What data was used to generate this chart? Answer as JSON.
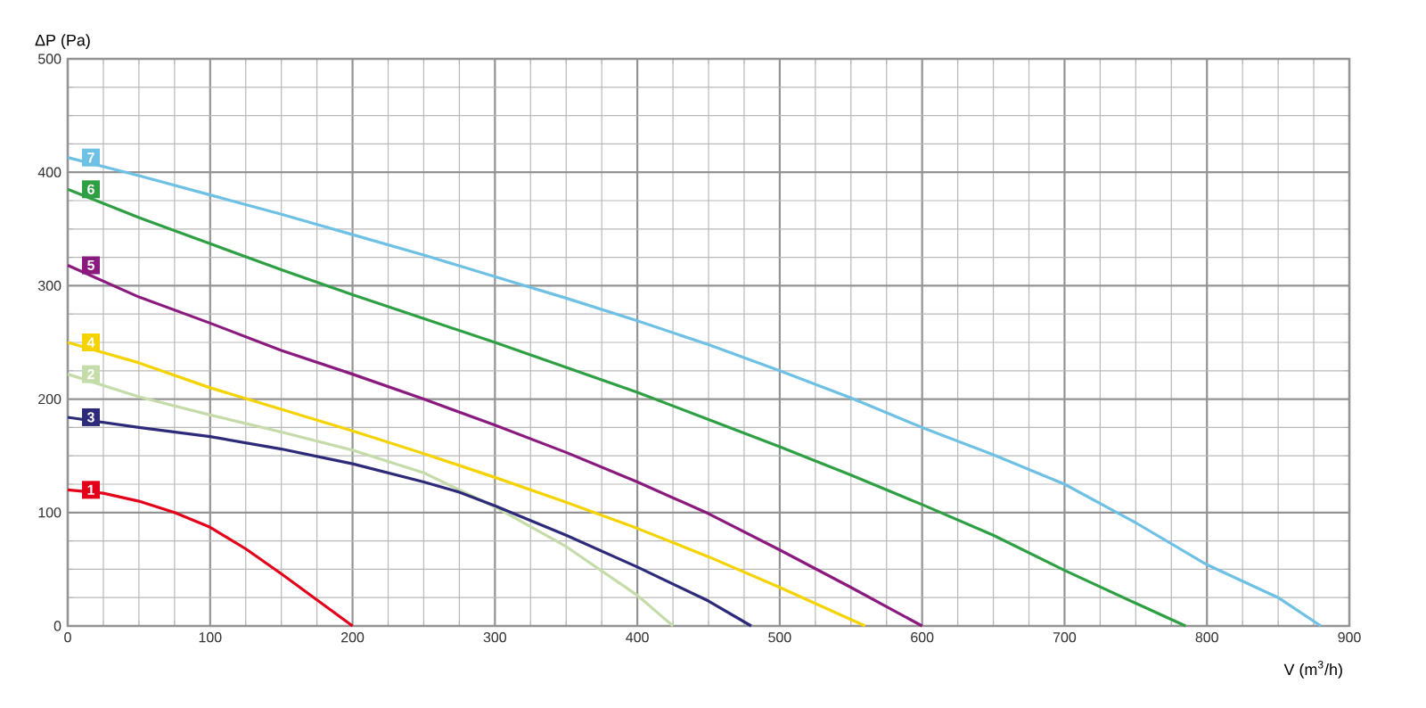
{
  "chart_data": {
    "type": "line",
    "xlabel": "V (m$^{3}$/h)",
    "ylabel": "ΔP (Pa)",
    "xlim": [
      0,
      900
    ],
    "ylim": [
      0,
      500
    ],
    "xticks": [
      0,
      100,
      200,
      300,
      400,
      500,
      600,
      700,
      800,
      900
    ],
    "yticks": [
      0,
      100,
      200,
      300,
      400,
      500
    ],
    "grid": true,
    "series": [
      {
        "name": "1",
        "color": "#e2001a",
        "x": [
          0,
          25,
          50,
          75,
          100,
          125,
          150,
          175,
          200
        ],
        "values": [
          120,
          117,
          110,
          100,
          87,
          68,
          46,
          23,
          0
        ]
      },
      {
        "name": "2",
        "color": "#c5dcaa",
        "x": [
          0,
          50,
          100,
          150,
          200,
          250,
          300,
          350,
          400,
          425
        ],
        "values": [
          222,
          202,
          186,
          171,
          155,
          135,
          105,
          70,
          27,
          0
        ]
      },
      {
        "name": "3",
        "color": "#2e2a7a",
        "x": [
          0,
          50,
          100,
          150,
          200,
          250,
          275,
          300,
          350,
          400,
          450,
          480
        ],
        "values": [
          184,
          175,
          167,
          156,
          143,
          127,
          118,
          106,
          80,
          52,
          22,
          0
        ]
      },
      {
        "name": "4",
        "color": "#f5d300",
        "x": [
          0,
          50,
          100,
          150,
          200,
          250,
          300,
          350,
          400,
          450,
          500,
          560
        ],
        "values": [
          250,
          232,
          210,
          191,
          172,
          152,
          131,
          109,
          86,
          61,
          34,
          0
        ]
      },
      {
        "name": "5",
        "color": "#8b1a7e",
        "x": [
          0,
          50,
          100,
          150,
          200,
          250,
          300,
          350,
          400,
          450,
          500,
          550,
          600
        ],
        "values": [
          318,
          290,
          267,
          243,
          222,
          200,
          177,
          153,
          127,
          99,
          67,
          34,
          0
        ]
      },
      {
        "name": "6",
        "color": "#2ea043",
        "x": [
          0,
          50,
          100,
          150,
          200,
          250,
          300,
          350,
          400,
          450,
          500,
          550,
          600,
          650,
          700,
          750,
          785
        ],
        "values": [
          385,
          360,
          337,
          314,
          292,
          271,
          250,
          228,
          206,
          182,
          158,
          133,
          107,
          80,
          49,
          20,
          0
        ]
      },
      {
        "name": "7",
        "color": "#6ec1e4",
        "x": [
          0,
          50,
          100,
          150,
          200,
          250,
          300,
          350,
          400,
          450,
          500,
          550,
          600,
          650,
          700,
          750,
          800,
          850,
          880
        ],
        "values": [
          413,
          397,
          380,
          363,
          345,
          327,
          308,
          289,
          269,
          248,
          225,
          201,
          175,
          151,
          125,
          91,
          54,
          25,
          0
        ]
      }
    ]
  }
}
